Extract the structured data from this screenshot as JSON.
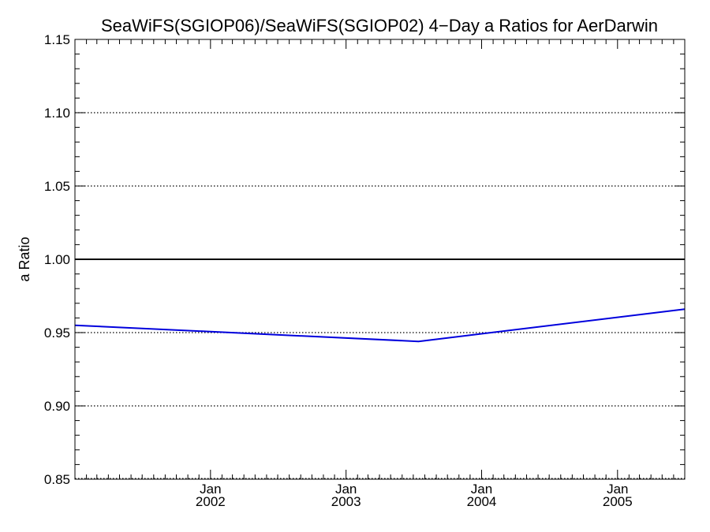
{
  "chart_data": {
    "type": "line",
    "title": "SeaWiFS(SGIOP06)/SeaWiFS(SGIOP02) 4−Day a Ratios for AerDarwin",
    "xlabel": "",
    "ylabel": "a Ratio",
    "ylim": [
      0.85,
      1.15
    ],
    "xlim": [
      "2001-01-01",
      "2005-07-01"
    ],
    "yticks": [
      "0.85",
      "0.90",
      "0.95",
      "1.00",
      "1.05",
      "1.10",
      "1.15"
    ],
    "xticks": [
      {
        "month": "Jan",
        "year": "2002",
        "date": "2002-01-01"
      },
      {
        "month": "Jan",
        "year": "2003",
        "date": "2003-01-01"
      },
      {
        "month": "Jan",
        "year": "2004",
        "date": "2004-01-01"
      },
      {
        "month": "Jan",
        "year": "2005",
        "date": "2005-01-01"
      }
    ],
    "grid": "horizontal dotted",
    "reference_line": 1.0,
    "series": [
      {
        "color": "#0000dd",
        "points": [
          {
            "x": "2001-01-01",
            "y": 0.955
          },
          {
            "x": "2003-07-15",
            "y": 0.944
          },
          {
            "x": "2005-07-01",
            "y": 0.966
          }
        ]
      }
    ]
  }
}
